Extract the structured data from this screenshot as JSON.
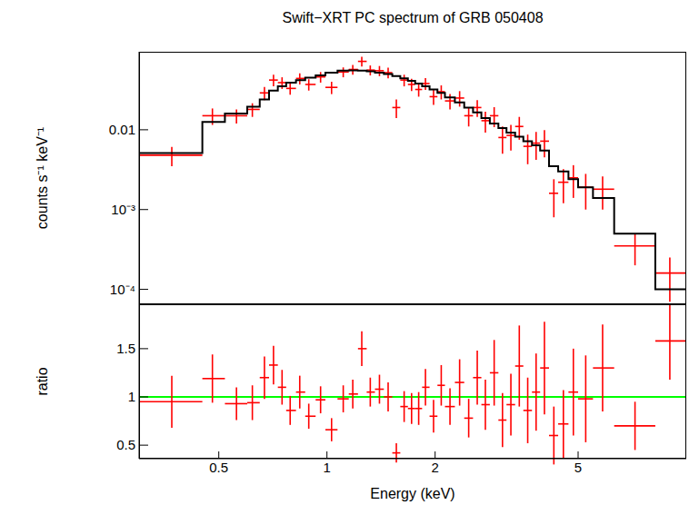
{
  "chart_data": [
    {
      "type": "scatter",
      "title": "Swift−XRT PC spectrum of GRB 050408",
      "y_label": "counts s⁻¹ keV⁻¹",
      "log": true,
      "tick_labels": "y",
      "xlim": [
        0.3,
        10
      ],
      "ylim": [
        6.5e-05,
        0.095
      ],
      "xticks": [
        0.5,
        1,
        2,
        5
      ],
      "yticks": [
        {
          "value": 0.0001,
          "label": "10⁻⁴"
        },
        {
          "value": 0.001,
          "label": "10⁻³"
        },
        0.01
      ],
      "color": "#ff0000",
      "model_color": "#000000",
      "x": [
        0.37,
        0.48,
        0.56,
        0.62,
        0.67,
        0.71,
        0.75,
        0.79,
        0.84,
        0.89,
        0.96,
        1.03,
        1.11,
        1.18,
        1.25,
        1.32,
        1.4,
        1.48,
        1.56,
        1.64,
        1.72,
        1.8,
        1.88,
        1.98,
        2.08,
        2.2,
        2.34,
        2.48,
        2.62,
        2.76,
        2.92,
        3.08,
        3.25,
        3.43,
        3.62,
        3.82,
        4.03,
        4.28,
        4.55,
        4.85,
        5.25,
        5.85,
        7.2,
        9.0
      ],
      "x_low": [
        0.3,
        0.45,
        0.52,
        0.6,
        0.65,
        0.69,
        0.73,
        0.77,
        0.82,
        0.87,
        0.93,
        0.99,
        1.07,
        1.15,
        1.22,
        1.29,
        1.36,
        1.44,
        1.52,
        1.6,
        1.68,
        1.76,
        1.84,
        1.93,
        2.03,
        2.13,
        2.27,
        2.41,
        2.55,
        2.69,
        2.84,
        3.0,
        3.16,
        3.34,
        3.52,
        3.72,
        3.92,
        4.15,
        4.4,
        4.7,
        5.0,
        5.5,
        6.3,
        8.2
      ],
      "x_high": [
        0.45,
        0.52,
        0.6,
        0.65,
        0.69,
        0.73,
        0.77,
        0.82,
        0.87,
        0.93,
        0.99,
        1.07,
        1.15,
        1.22,
        1.29,
        1.36,
        1.44,
        1.52,
        1.6,
        1.68,
        1.76,
        1.84,
        1.93,
        2.03,
        2.13,
        2.27,
        2.41,
        2.55,
        2.69,
        2.84,
        3.0,
        3.16,
        3.34,
        3.52,
        3.72,
        3.92,
        4.15,
        4.4,
        4.7,
        5.0,
        5.5,
        6.3,
        8.2,
        10
      ],
      "y": [
        0.0048,
        0.015,
        0.015,
        0.018,
        0.029,
        0.042,
        0.039,
        0.033,
        0.044,
        0.037,
        0.046,
        0.034,
        0.053,
        0.057,
        0.072,
        0.056,
        0.055,
        0.052,
        0.019,
        0.042,
        0.037,
        0.032,
        0.038,
        0.026,
        0.03,
        0.023,
        0.025,
        0.015,
        0.019,
        0.013,
        0.015,
        0.008,
        0.0085,
        0.011,
        0.0062,
        0.0068,
        0.0072,
        0.0016,
        0.0022,
        0.0025,
        0.0019,
        0.0018,
        0.00035,
        0.00016
      ],
      "y_err": [
        0.0013,
        0.0035,
        0.003,
        0.0035,
        0.0055,
        0.007,
        0.0065,
        0.0055,
        0.007,
        0.006,
        0.007,
        0.006,
        0.0075,
        0.008,
        0.01,
        0.008,
        0.008,
        0.008,
        0.005,
        0.007,
        0.0065,
        0.006,
        0.0065,
        0.0055,
        0.006,
        0.005,
        0.0055,
        0.004,
        0.0045,
        0.0038,
        0.0042,
        0.003,
        0.003,
        0.0035,
        0.0025,
        0.0026,
        0.0027,
        0.0008,
        0.001,
        0.0011,
        0.0009,
        0.0008,
        0.00015,
        9e-05
      ],
      "model": [
        0.0051,
        0.0125,
        0.016,
        0.0195,
        0.024,
        0.031,
        0.035,
        0.039,
        0.042,
        0.045,
        0.048,
        0.052,
        0.055,
        0.0555,
        0.055,
        0.054,
        0.052,
        0.05,
        0.047,
        0.044,
        0.041,
        0.038,
        0.035,
        0.032,
        0.029,
        0.0255,
        0.022,
        0.019,
        0.0165,
        0.014,
        0.012,
        0.0105,
        0.0092,
        0.0082,
        0.0072,
        0.0064,
        0.0055,
        0.0035,
        0.003,
        0.0024,
        0.0019,
        0.0014,
        0.0005,
        0.0001
      ]
    },
    {
      "type": "scatter",
      "y_label": "ratio",
      "x_label": "Energy (keV)",
      "log": "x",
      "xlim": [
        0.3,
        10
      ],
      "ylim": [
        0.36,
        1.96
      ],
      "xticks": [
        0.5,
        1,
        2,
        5
      ],
      "yticks": [
        0.5,
        1,
        1.5
      ],
      "color": "#ff0000",
      "reference_line": 1,
      "reference_color": "#00ff00",
      "x": [
        0.37,
        0.48,
        0.56,
        0.62,
        0.67,
        0.71,
        0.75,
        0.79,
        0.84,
        0.89,
        0.96,
        1.03,
        1.11,
        1.18,
        1.25,
        1.32,
        1.4,
        1.48,
        1.56,
        1.64,
        1.72,
        1.8,
        1.88,
        1.98,
        2.08,
        2.2,
        2.34,
        2.48,
        2.62,
        2.76,
        2.92,
        3.08,
        3.25,
        3.43,
        3.62,
        3.82,
        4.03,
        4.28,
        4.55,
        4.85,
        5.25,
        5.85,
        7.2,
        9.0
      ],
      "x_low": [
        0.3,
        0.45,
        0.52,
        0.6,
        0.65,
        0.69,
        0.73,
        0.77,
        0.82,
        0.87,
        0.93,
        0.99,
        1.07,
        1.15,
        1.22,
        1.29,
        1.36,
        1.44,
        1.52,
        1.6,
        1.68,
        1.76,
        1.84,
        1.93,
        2.03,
        2.13,
        2.27,
        2.41,
        2.55,
        2.69,
        2.84,
        3.0,
        3.16,
        3.34,
        3.52,
        3.72,
        3.92,
        4.15,
        4.4,
        4.7,
        5.0,
        5.5,
        6.3,
        8.2
      ],
      "x_high": [
        0.45,
        0.52,
        0.6,
        0.65,
        0.69,
        0.73,
        0.77,
        0.82,
        0.87,
        0.93,
        0.99,
        1.07,
        1.15,
        1.22,
        1.29,
        1.36,
        1.44,
        1.52,
        1.6,
        1.68,
        1.76,
        1.84,
        1.93,
        2.03,
        2.13,
        2.27,
        2.41,
        2.55,
        2.69,
        2.84,
        3.0,
        3.16,
        3.34,
        3.52,
        3.72,
        3.92,
        4.15,
        4.4,
        4.7,
        5.0,
        5.5,
        6.3,
        8.2,
        10
      ],
      "y": [
        0.95,
        1.19,
        0.93,
        0.94,
        1.2,
        1.33,
        1.1,
        0.86,
        1.05,
        0.8,
        0.97,
        0.66,
        0.98,
        1.03,
        1.5,
        1.05,
        1.08,
        1.0,
        0.42,
        0.9,
        0.88,
        0.88,
        1.1,
        0.8,
        1.12,
        0.9,
        1.15,
        0.78,
        1.2,
        0.92,
        1.25,
        0.76,
        0.92,
        1.32,
        0.86,
        1.05,
        1.3,
        0.6,
        0.72,
        1.05,
        0.98,
        1.3,
        0.7,
        1.58
      ],
      "y_err": [
        0.27,
        0.25,
        0.17,
        0.18,
        0.22,
        0.2,
        0.18,
        0.15,
        0.17,
        0.13,
        0.14,
        0.12,
        0.14,
        0.15,
        0.18,
        0.15,
        0.15,
        0.15,
        0.1,
        0.16,
        0.16,
        0.17,
        0.19,
        0.17,
        0.21,
        0.19,
        0.24,
        0.2,
        0.28,
        0.26,
        0.34,
        0.28,
        0.32,
        0.42,
        0.34,
        0.4,
        0.48,
        0.3,
        0.35,
        0.45,
        0.45,
        0.45,
        0.25,
        0.4
      ]
    }
  ]
}
